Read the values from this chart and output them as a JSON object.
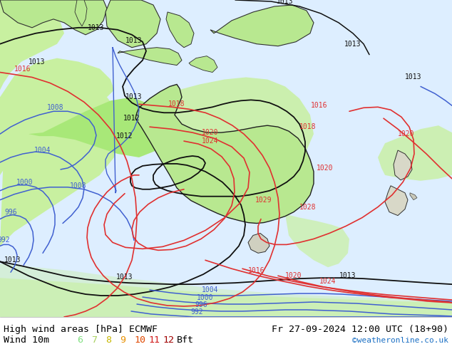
{
  "title_left": "High wind areas [hPa] ECMWF",
  "title_right": "Fr 27-09-2024 12:00 UTC (18+90)",
  "subtitle_left": "Wind 10m",
  "subtitle_right": "©weatheronline.co.uk",
  "bft_nums": [
    "6",
    "7",
    "8",
    "9",
    "10",
    "11",
    "12"
  ],
  "bft_colors": [
    "#80e080",
    "#a8d060",
    "#c8b800",
    "#e89000",
    "#e04800",
    "#d01818",
    "#a00000"
  ],
  "bg_color": "#ddeeff",
  "land_white": "#f0f0f0",
  "land_green": "#b8e890",
  "wind_light": "#c8f0a0",
  "wind_medium": "#a8e878",
  "contour_blue": "#4060d0",
  "contour_red": "#e03030",
  "contour_black": "#101010",
  "fig_width": 6.34,
  "fig_height": 4.9,
  "dpi": 100
}
